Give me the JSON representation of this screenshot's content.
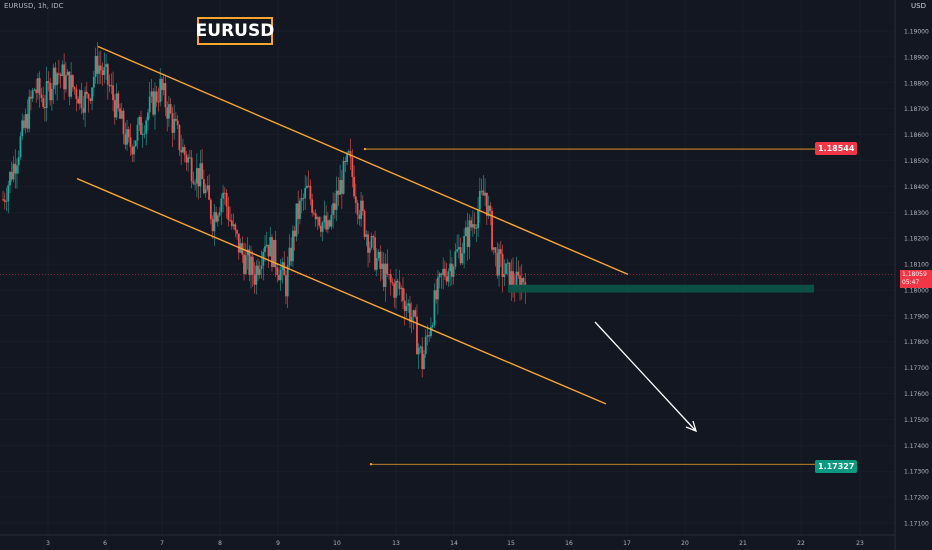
{
  "symbol_label": "EURUSD, 1h, IDC",
  "price_axis_unit": "USD",
  "colors": {
    "background": "#131722",
    "up_candle": "#26a69a",
    "down_candle": "#ef5350",
    "trendline": "#f7a62b",
    "arrow": "#ffffff",
    "support_zone": "#0b4f45",
    "grid": "#1e222d",
    "axis_text": "#b2b5be",
    "target_down_tag": "#089981",
    "target_up_tag": "#f23645"
  },
  "chart_data": {
    "type": "candlestick",
    "title": "EURUSD",
    "price_axis": {
      "range": [
        1.1705,
        1.192
      ],
      "ticks": [
        "1.19000",
        "1.18900",
        "1.18800",
        "1.18700",
        "1.18600",
        "1.18500",
        "1.18400",
        "1.18300",
        "1.18200",
        "1.18100",
        "1.18000",
        "1.17900",
        "1.17800",
        "1.17700",
        "1.17600",
        "1.17500",
        "1.17400",
        "1.17300",
        "1.17200",
        "1.17100"
      ]
    },
    "time_axis": {
      "labels": [
        "3",
        "6",
        "7",
        "8",
        "9",
        "10",
        "13",
        "14",
        "15",
        "16",
        "17",
        "20",
        "21",
        "22",
        "23"
      ],
      "start_bar_offset": 0
    },
    "candles_close_path": [
      1.1835,
      1.1848,
      1.1862,
      1.1878,
      1.1873,
      1.1885,
      1.1881,
      1.1877,
      1.1873,
      1.1888,
      1.188,
      1.1868,
      1.1855,
      1.1862,
      1.187,
      1.1878,
      1.1867,
      1.1855,
      1.1848,
      1.1842,
      1.1828,
      1.1838,
      1.1822,
      1.1812,
      1.1806,
      1.182,
      1.1812,
      1.1802,
      1.1828,
      1.1838,
      1.183,
      1.1822,
      1.1838,
      1.185,
      1.1832,
      1.1818,
      1.1808,
      1.1802,
      1.18,
      1.179,
      1.1772,
      1.1792,
      1.1806,
      1.1812,
      1.1818,
      1.1828,
      1.1838,
      1.1812,
      1.1806,
      1.1802,
      1.1806
    ],
    "current_price": "1.18059",
    "current_countdown": "05:47",
    "levels": [
      {
        "name": "upper-target",
        "price": "1.18544"
      },
      {
        "name": "lower-target",
        "price": "1.17327"
      }
    ],
    "support_zone": [
      1.1799,
      1.1802
    ]
  }
}
